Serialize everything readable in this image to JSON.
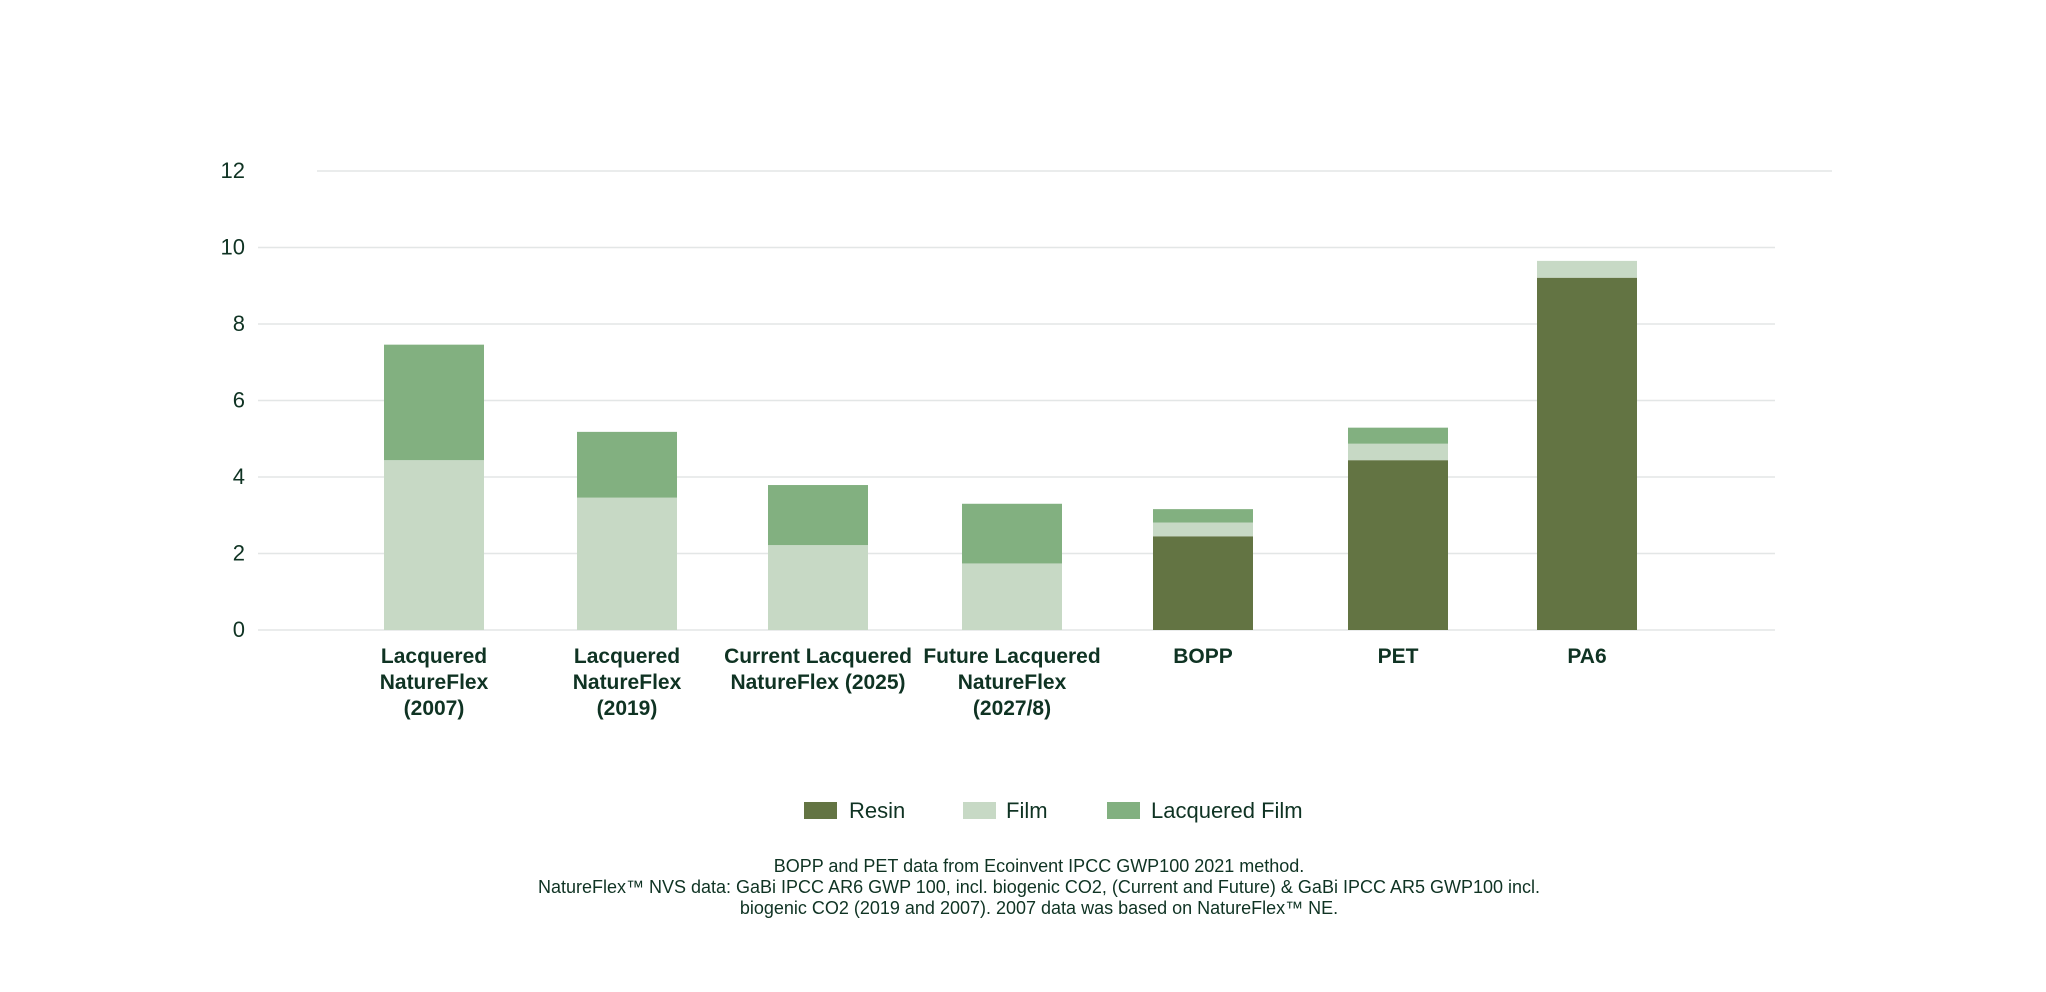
{
  "chart_data": {
    "type": "bar",
    "stacked": true,
    "title": "",
    "xlabel": "",
    "ylabel": "",
    "ylim": [
      0,
      12
    ],
    "yticks": [
      0,
      2,
      4,
      6,
      8,
      10,
      12
    ],
    "grid": true,
    "legend_position": "bottom",
    "categories": [
      [
        "Lacquered",
        "NatureFlex",
        "(2007)"
      ],
      [
        "Lacquered",
        "NatureFlex",
        "(2019)"
      ],
      [
        "Current Lacquered",
        "NatureFlex (2025)"
      ],
      [
        "Future Lacquered",
        "NatureFlex",
        "(2027/8)"
      ],
      [
        "BOPP"
      ],
      [
        "PET"
      ],
      [
        "PA6"
      ]
    ],
    "series": [
      {
        "name": "Resin",
        "color": "#637443",
        "values": [
          0,
          0,
          0,
          0,
          2.45,
          4.44,
          9.21
        ]
      },
      {
        "name": "Film",
        "color": "#c7d9c5",
        "values": [
          4.44,
          3.46,
          2.22,
          1.74,
          0.36,
          0.43,
          0.44
        ]
      },
      {
        "name": "Lacquered Film",
        "color": "#82b080",
        "values": [
          3.02,
          1.72,
          1.57,
          1.56,
          0.35,
          0.42,
          0
        ]
      }
    ]
  },
  "footnote": [
    "BOPP and PET data from Ecoinvent IPCC GWP100 2021 method.",
    "NatureFlex™ NVS data: GaBi IPCC AR6 GWP 100, incl. biogenic CO2, (Current and Future) & GaBi IPCC AR5 GWP100 incl.",
    "biogenic CO2 (2019 and 2007). 2007 data was based on NatureFlex™ NE."
  ]
}
